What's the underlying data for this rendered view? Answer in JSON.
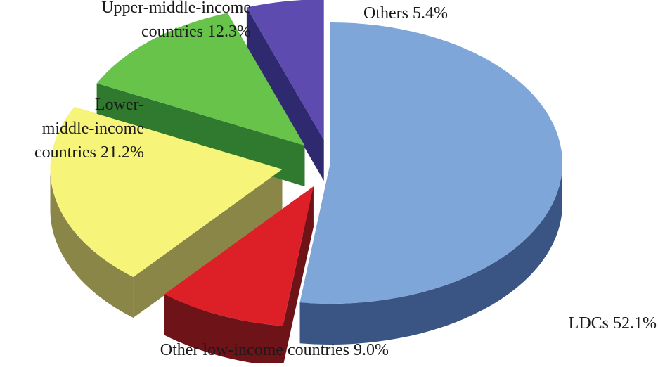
{
  "chart_data": {
    "type": "pie",
    "title": "",
    "slices": [
      {
        "label": "LDCs",
        "value": 52.1,
        "value_text": "52.1%",
        "label_lines": [
          "LDCs 52.1%"
        ],
        "top_color": "#7ea6d9",
        "side_color": "#3a5583"
      },
      {
        "label": "Other low-income countries",
        "value": 9.0,
        "value_text": "9.0%",
        "label_lines": [
          "Other low-income countries 9.0%"
        ],
        "top_color": "#dd2028",
        "side_color": "#6e1419"
      },
      {
        "label": "Lower-middle-income countries",
        "value": 21.2,
        "value_text": "21.2%",
        "label_lines": [
          "Lower-",
          "middle-income",
          "countries 21.2%"
        ],
        "top_color": "#f7f47a",
        "side_color": "#8a8648"
      },
      {
        "label": "Upper-middle-income countries",
        "value": 12.3,
        "value_text": "12.3%",
        "label_lines": [
          "Upper-middle-income",
          "countries 12.3%"
        ],
        "top_color": "#67c34a",
        "side_color": "#2f7a2f"
      },
      {
        "label": "Others",
        "value": 5.4,
        "value_text": "5.4%",
        "label_lines": [
          "Others 5.4%"
        ],
        "top_color": "#5e4bb0",
        "side_color": "#2f2a70"
      }
    ],
    "exploded": true,
    "three_d": true,
    "legend": "none"
  }
}
